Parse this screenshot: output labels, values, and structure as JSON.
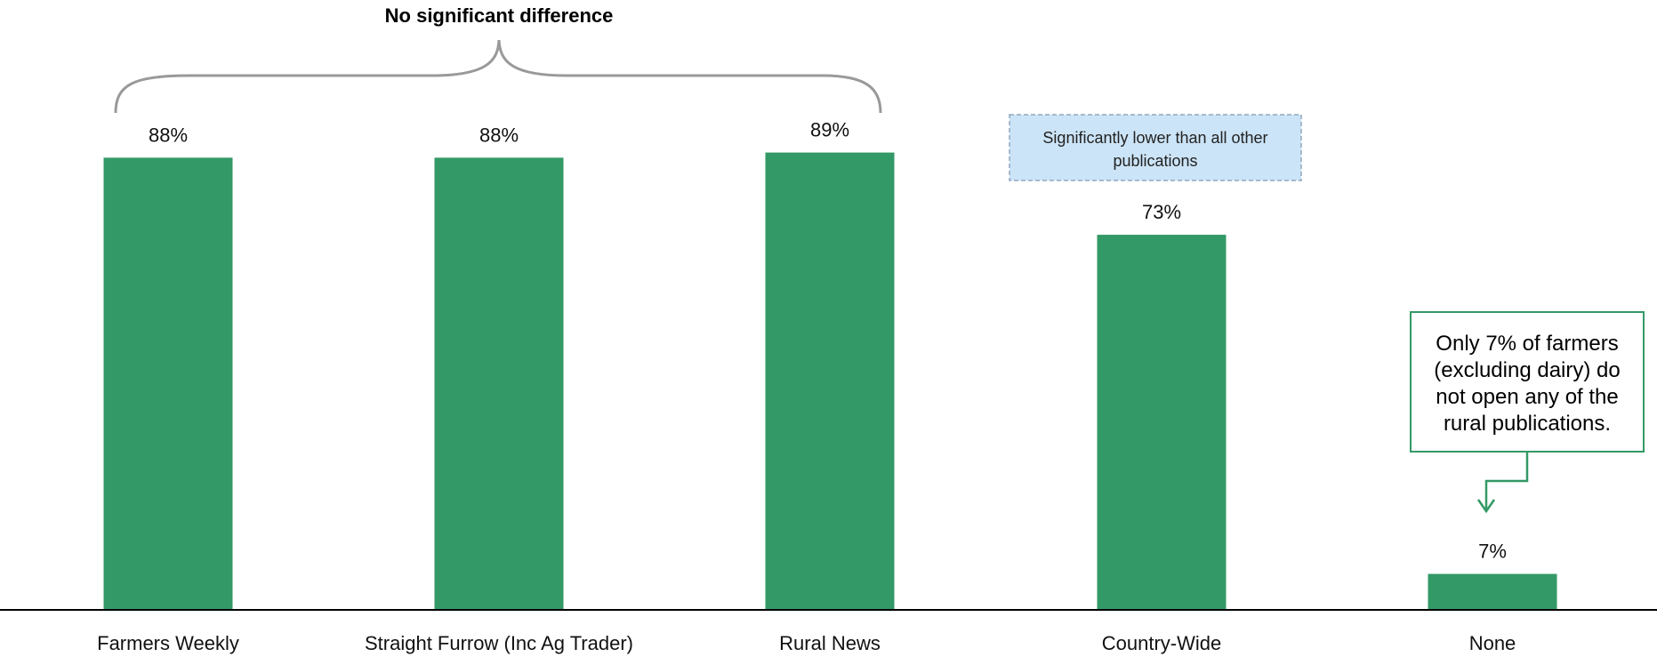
{
  "chart_data": {
    "type": "bar",
    "categories": [
      "Farmers Weekly",
      "Straight Furrow (Inc Ag Trader)",
      "Rural News",
      "Country-Wide",
      "None"
    ],
    "values": [
      88,
      88,
      89,
      73,
      7
    ],
    "value_labels": [
      "88%",
      "88%",
      "89%",
      "73%",
      "7%"
    ],
    "ylim": [
      0,
      100
    ],
    "grid": false,
    "bar_color": "#339966",
    "annotations": {
      "bracket_title": "No significant difference",
      "note_line1": "Significantly lower than all other",
      "note_line2": "publications",
      "note_fill": "#cce4f7",
      "callout_lines": [
        "Only 7% of farmers",
        "(excluding dairy) do",
        "not open any of the",
        "rural publications."
      ],
      "callout_border": "#339966"
    }
  }
}
